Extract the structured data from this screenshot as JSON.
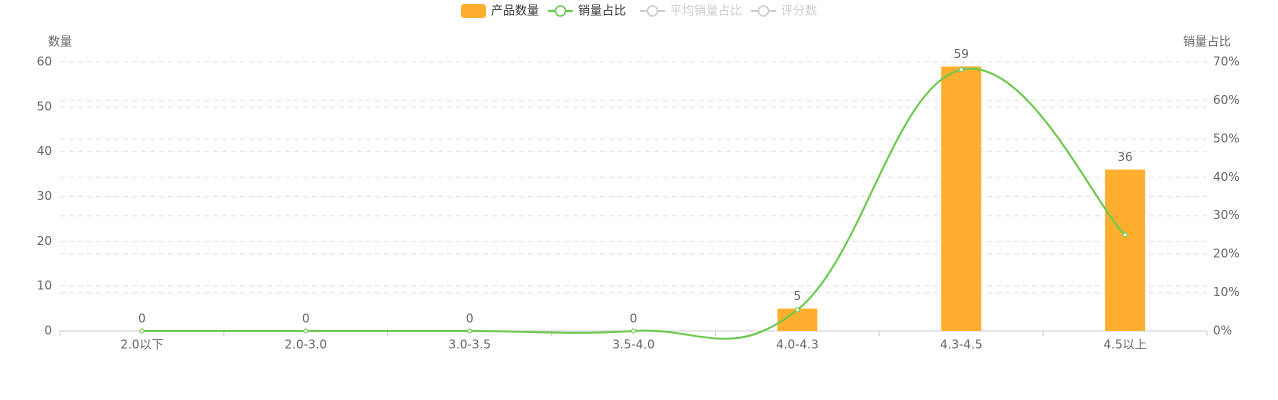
{
  "chart_data": {
    "type": "bar",
    "categories": [
      "2.0以下",
      "2.0-3.0",
      "3.0-3.5",
      "3.5-4.0",
      "4.0-4.3",
      "4.3-4.5",
      "4.5以上"
    ],
    "ylabel": "数量",
    "y2label": "销量占比",
    "ylim": [
      0,
      60
    ],
    "yticks": [
      0,
      10,
      20,
      30,
      40,
      50,
      60
    ],
    "y2lim": [
      0,
      70
    ],
    "y2ticks": [
      {
        "value": 0,
        "label": "0%"
      },
      {
        "value": 10,
        "label": "10%"
      },
      {
        "value": 20,
        "label": "20%"
      },
      {
        "value": 30,
        "label": "30%"
      },
      {
        "value": 40,
        "label": "40%"
      },
      {
        "value": 50,
        "label": "50%"
      },
      {
        "value": 60,
        "label": "60%"
      },
      {
        "value": 70,
        "label": "70%"
      }
    ],
    "grid": true,
    "series": [
      {
        "name": "产品数量",
        "type": "bar",
        "color": "#ffae2e",
        "values": [
          0,
          0,
          0,
          0,
          5,
          59,
          36
        ]
      },
      {
        "name": "销量占比",
        "type": "line",
        "axis": "y2",
        "color": "#6cc94f",
        "values": [
          0,
          0,
          0,
          0,
          5.5,
          68,
          25
        ]
      },
      {
        "name": "平均销量占比",
        "type": "line",
        "axis": "y2",
        "color": "#cccccc",
        "hidden": true
      },
      {
        "name": "评分数",
        "type": "line",
        "axis": "y2",
        "color": "#cccccc",
        "hidden": true
      }
    ]
  }
}
